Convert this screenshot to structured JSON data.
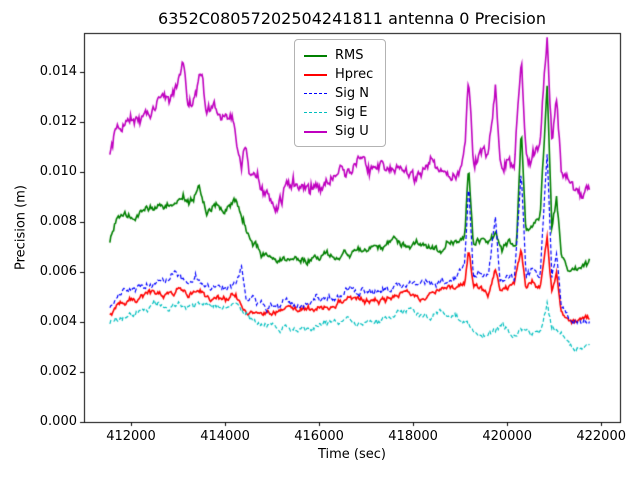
{
  "chart_data": {
    "type": "line",
    "title": "6352C08057202504241811 antenna 0 Precision",
    "xlabel": "Time (sec)",
    "ylabel": "Precision (m)",
    "xlim": [
      411000,
      422400
    ],
    "ylim": [
      0,
      0.01556
    ],
    "grid": false,
    "legend_position": "upper center",
    "sample_step": 20,
    "xticks": [
      {
        "v": 412000,
        "label": "412000"
      },
      {
        "v": 414000,
        "label": "414000"
      },
      {
        "v": 416000,
        "label": "416000"
      },
      {
        "v": 418000,
        "label": "418000"
      },
      {
        "v": 420000,
        "label": "420000"
      },
      {
        "v": 422000,
        "label": "422000"
      }
    ],
    "yticks": [
      {
        "v": 0.0,
        "label": "0.000"
      },
      {
        "v": 0.002,
        "label": "0.002"
      },
      {
        "v": 0.004,
        "label": "0.004"
      },
      {
        "v": 0.006,
        "label": "0.006"
      },
      {
        "v": 0.008,
        "label": "0.008"
      },
      {
        "v": 0.01,
        "label": "0.010"
      },
      {
        "v": 0.012,
        "label": "0.012"
      },
      {
        "v": 0.014,
        "label": "0.014"
      }
    ],
    "series": [
      {
        "name": "RMS",
        "color": "#008000",
        "dash": false,
        "width": 1.6,
        "noise": 0.00013,
        "points": [
          [
            411550,
            0.0072
          ],
          [
            411650,
            0.0079
          ],
          [
            411800,
            0.0081
          ],
          [
            412000,
            0.0083
          ],
          [
            412300,
            0.0085
          ],
          [
            412600,
            0.0087
          ],
          [
            412900,
            0.0088
          ],
          [
            413100,
            0.0094
          ],
          [
            413250,
            0.0087
          ],
          [
            413450,
            0.0093
          ],
          [
            413600,
            0.0085
          ],
          [
            413800,
            0.0087
          ],
          [
            414000,
            0.0086
          ],
          [
            414200,
            0.0087
          ],
          [
            414400,
            0.008
          ],
          [
            414600,
            0.007
          ],
          [
            414800,
            0.0066
          ],
          [
            415100,
            0.0063
          ],
          [
            415400,
            0.0065
          ],
          [
            415700,
            0.0066
          ],
          [
            416100,
            0.0067
          ],
          [
            416500,
            0.0068
          ],
          [
            416900,
            0.0069
          ],
          [
            417300,
            0.007
          ],
          [
            417700,
            0.0071
          ],
          [
            418100,
            0.007
          ],
          [
            418500,
            0.0071
          ],
          [
            418800,
            0.0073
          ],
          [
            419000,
            0.0074
          ],
          [
            419100,
            0.0076
          ],
          [
            419180,
            0.0104
          ],
          [
            419280,
            0.0071
          ],
          [
            419450,
            0.0072
          ],
          [
            419600,
            0.0069
          ],
          [
            419750,
            0.0076
          ],
          [
            419900,
            0.007
          ],
          [
            420050,
            0.0072
          ],
          [
            420200,
            0.0071
          ],
          [
            420300,
            0.0119
          ],
          [
            420400,
            0.0074
          ],
          [
            420550,
            0.0078
          ],
          [
            420700,
            0.0082
          ],
          [
            420850,
            0.0134
          ],
          [
            420950,
            0.0079
          ],
          [
            421050,
            0.0091
          ],
          [
            421150,
            0.0068
          ],
          [
            421300,
            0.006
          ],
          [
            421500,
            0.0061
          ],
          [
            421750,
            0.0064
          ]
        ]
      },
      {
        "name": "Hprec",
        "color": "#ff0000",
        "dash": false,
        "width": 1.6,
        "noise": 0.0001,
        "points": [
          [
            411550,
            0.0042
          ],
          [
            411700,
            0.0046
          ],
          [
            412000,
            0.0048
          ],
          [
            412300,
            0.005
          ],
          [
            412600,
            0.0051
          ],
          [
            413000,
            0.0053
          ],
          [
            413200,
            0.0049
          ],
          [
            413450,
            0.0052
          ],
          [
            413700,
            0.0049
          ],
          [
            414000,
            0.0051
          ],
          [
            414200,
            0.0051
          ],
          [
            414400,
            0.0047
          ],
          [
            414700,
            0.0044
          ],
          [
            415000,
            0.0043
          ],
          [
            415400,
            0.0044
          ],
          [
            415800,
            0.0045
          ],
          [
            416200,
            0.0046
          ],
          [
            416700,
            0.0048
          ],
          [
            417200,
            0.0049
          ],
          [
            417700,
            0.0051
          ],
          [
            418200,
            0.0051
          ],
          [
            418600,
            0.0052
          ],
          [
            419000,
            0.0054
          ],
          [
            419100,
            0.0055
          ],
          [
            419180,
            0.0069
          ],
          [
            419280,
            0.0053
          ],
          [
            419450,
            0.0055
          ],
          [
            419600,
            0.0053
          ],
          [
            419750,
            0.0061
          ],
          [
            419850,
            0.0053
          ],
          [
            420000,
            0.0054
          ],
          [
            420150,
            0.0053
          ],
          [
            420300,
            0.0068
          ],
          [
            420400,
            0.0052
          ],
          [
            420550,
            0.0054
          ],
          [
            420700,
            0.0053
          ],
          [
            420850,
            0.0074
          ],
          [
            420950,
            0.0052
          ],
          [
            421050,
            0.0058
          ],
          [
            421150,
            0.0044
          ],
          [
            421300,
            0.0039
          ],
          [
            421500,
            0.0038
          ],
          [
            421750,
            0.004
          ]
        ]
      },
      {
        "name": "Sig N",
        "color": "#0000ff",
        "dash": true,
        "width": 1.2,
        "noise": 0.00013,
        "points": [
          [
            411550,
            0.0046
          ],
          [
            411700,
            0.005
          ],
          [
            412000,
            0.0053
          ],
          [
            412300,
            0.0055
          ],
          [
            412600,
            0.0056
          ],
          [
            413000,
            0.0058
          ],
          [
            413200,
            0.0054
          ],
          [
            413450,
            0.0057
          ],
          [
            413700,
            0.0054
          ],
          [
            414000,
            0.0056
          ],
          [
            414200,
            0.0056
          ],
          [
            414350,
            0.0064
          ],
          [
            414450,
            0.005
          ],
          [
            414700,
            0.0047
          ],
          [
            415000,
            0.0045
          ],
          [
            415300,
            0.0046
          ],
          [
            415700,
            0.0047
          ],
          [
            416100,
            0.0049
          ],
          [
            416600,
            0.0051
          ],
          [
            417100,
            0.0053
          ],
          [
            417600,
            0.0054
          ],
          [
            418100,
            0.0055
          ],
          [
            418500,
            0.0056
          ],
          [
            418900,
            0.0058
          ],
          [
            419100,
            0.0061
          ],
          [
            419180,
            0.0094
          ],
          [
            419280,
            0.0057
          ],
          [
            419450,
            0.006
          ],
          [
            419600,
            0.0057
          ],
          [
            419750,
            0.0084
          ],
          [
            419850,
            0.0057
          ],
          [
            420000,
            0.0059
          ],
          [
            420150,
            0.0057
          ],
          [
            420300,
            0.0099
          ],
          [
            420400,
            0.0057
          ],
          [
            420550,
            0.0061
          ],
          [
            420700,
            0.0059
          ],
          [
            420850,
            0.0108
          ],
          [
            420950,
            0.0059
          ],
          [
            421050,
            0.0069
          ],
          [
            421150,
            0.0049
          ],
          [
            421300,
            0.0043
          ],
          [
            421500,
            0.004
          ],
          [
            421750,
            0.0042
          ]
        ]
      },
      {
        "name": "Sig E",
        "color": "#00bfbf",
        "dash": true,
        "width": 1.2,
        "noise": 0.0001,
        "points": [
          [
            411550,
            0.0039
          ],
          [
            411700,
            0.0042
          ],
          [
            412000,
            0.0044
          ],
          [
            412300,
            0.0045
          ],
          [
            412600,
            0.0046
          ],
          [
            413000,
            0.0048
          ],
          [
            413200,
            0.0045
          ],
          [
            413450,
            0.0047
          ],
          [
            413700,
            0.0045
          ],
          [
            414000,
            0.0046
          ],
          [
            414200,
            0.0047
          ],
          [
            414400,
            0.0043
          ],
          [
            414700,
            0.004
          ],
          [
            415000,
            0.0037
          ],
          [
            415400,
            0.0038
          ],
          [
            415800,
            0.0039
          ],
          [
            416200,
            0.004
          ],
          [
            416700,
            0.004
          ],
          [
            417200,
            0.0041
          ],
          [
            417700,
            0.0042
          ],
          [
            418200,
            0.0042
          ],
          [
            418600,
            0.0043
          ],
          [
            418900,
            0.0044
          ],
          [
            419100,
            0.0041
          ],
          [
            419300,
            0.0036
          ],
          [
            419500,
            0.0035
          ],
          [
            419700,
            0.0037
          ],
          [
            419900,
            0.0039
          ],
          [
            420100,
            0.0035
          ],
          [
            420300,
            0.0037
          ],
          [
            420500,
            0.0035
          ],
          [
            420700,
            0.0036
          ],
          [
            420850,
            0.0047
          ],
          [
            420950,
            0.0037
          ],
          [
            421100,
            0.0036
          ],
          [
            421300,
            0.0032
          ],
          [
            421500,
            0.003
          ],
          [
            421750,
            0.0032
          ]
        ]
      },
      {
        "name": "Sig U",
        "color": "#bf00bf",
        "dash": false,
        "width": 1.6,
        "noise": 0.00024,
        "points": [
          [
            411550,
            0.0107
          ],
          [
            411650,
            0.0117
          ],
          [
            411800,
            0.012
          ],
          [
            412000,
            0.0123
          ],
          [
            412200,
            0.0125
          ],
          [
            412500,
            0.0127
          ],
          [
            412800,
            0.0129
          ],
          [
            413000,
            0.0132
          ],
          [
            413100,
            0.0143
          ],
          [
            413200,
            0.0128
          ],
          [
            413350,
            0.0132
          ],
          [
            413500,
            0.0144
          ],
          [
            413600,
            0.0126
          ],
          [
            413750,
            0.0129
          ],
          [
            413900,
            0.0121
          ],
          [
            414050,
            0.0125
          ],
          [
            414200,
            0.0122
          ],
          [
            414350,
            0.0104
          ],
          [
            414450,
            0.0112
          ],
          [
            414550,
            0.01
          ],
          [
            414700,
            0.0097
          ],
          [
            414900,
            0.0092
          ],
          [
            415100,
            0.009
          ],
          [
            415300,
            0.0094
          ],
          [
            415600,
            0.0096
          ],
          [
            416000,
            0.0097
          ],
          [
            416400,
            0.0098
          ],
          [
            416800,
            0.0099
          ],
          [
            417200,
            0.01
          ],
          [
            417600,
            0.0101
          ],
          [
            418000,
            0.01
          ],
          [
            418400,
            0.0099
          ],
          [
            418700,
            0.0097
          ],
          [
            418950,
            0.0098
          ],
          [
            419100,
            0.0105
          ],
          [
            419180,
            0.0136
          ],
          [
            419280,
            0.0103
          ],
          [
            419450,
            0.0107
          ],
          [
            419600,
            0.0104
          ],
          [
            419750,
            0.0132
          ],
          [
            419850,
            0.0104
          ],
          [
            420000,
            0.0106
          ],
          [
            420150,
            0.0104
          ],
          [
            420300,
            0.0148
          ],
          [
            420400,
            0.0108
          ],
          [
            420550,
            0.011
          ],
          [
            420700,
            0.0115
          ],
          [
            420850,
            0.0156
          ],
          [
            420950,
            0.0118
          ],
          [
            421050,
            0.0134
          ],
          [
            421150,
            0.0104
          ],
          [
            421300,
            0.0098
          ],
          [
            421450,
            0.0094
          ],
          [
            421600,
            0.0092
          ],
          [
            421750,
            0.0097
          ]
        ]
      }
    ]
  }
}
